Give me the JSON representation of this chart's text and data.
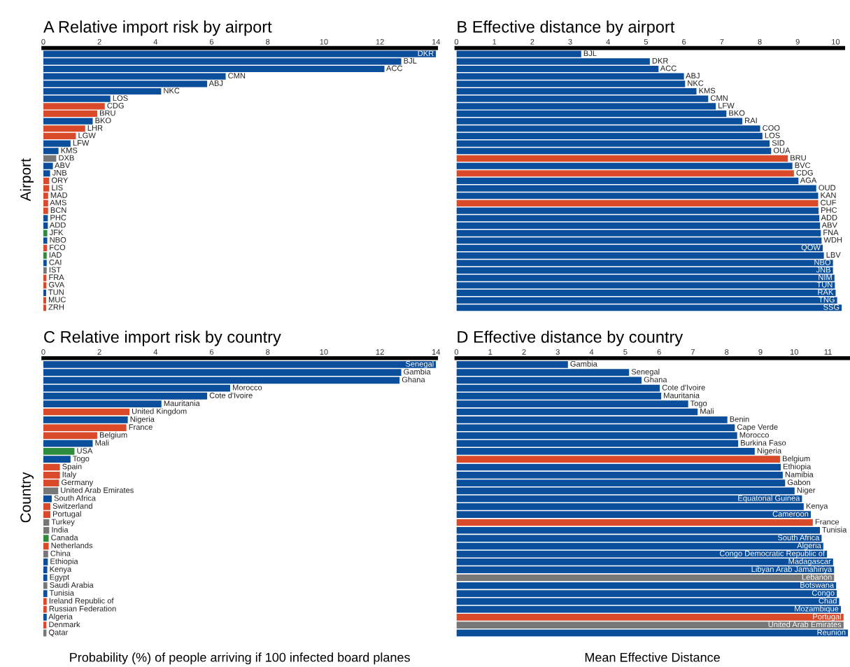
{
  "chart_data": [
    {
      "type": "bar",
      "orientation": "horizontal",
      "title": "A Relative import risk by airport",
      "ylabel": "Airport",
      "tick_labels": "x",
      "categories": [
        "DKR",
        "BJL",
        "ACC",
        "CMN",
        "ABJ",
        "NKC",
        "LOS",
        "CDG",
        "BRU",
        "BKO",
        "LHR",
        "LGW",
        "LFW",
        "KMS",
        "DXB",
        "ABV",
        "JNB",
        "ORY",
        "LIS",
        "MAD",
        "AMS",
        "BCN",
        "PHC",
        "ADD",
        "JFK",
        "NBO",
        "FCO",
        "IAD",
        "CAI",
        "IST",
        "FRA",
        "GVA",
        "TUN",
        "MUC",
        "ZRH"
      ],
      "values": [
        14.0,
        12.76,
        12.16,
        6.5,
        5.84,
        4.2,
        2.39,
        2.19,
        1.92,
        1.76,
        1.49,
        1.16,
        0.97,
        0.54,
        0.46,
        0.34,
        0.24,
        0.21,
        0.21,
        0.17,
        0.17,
        0.17,
        0.16,
        0.16,
        0.14,
        0.14,
        0.13,
        0.12,
        0.12,
        0.12,
        0.11,
        0.11,
        0.1,
        0.1,
        0.1
      ],
      "colors": [
        "#0b4f9c",
        "#0b4f9c",
        "#0b4f9c",
        "#0b4f9c",
        "#0b4f9c",
        "#0b4f9c",
        "#0b4f9c",
        "#d94a2a",
        "#d94a2a",
        "#0b4f9c",
        "#d94a2a",
        "#d94a2a",
        "#0b4f9c",
        "#0b4f9c",
        "#777777",
        "#0b4f9c",
        "#0b4f9c",
        "#d94a2a",
        "#d94a2a",
        "#d94a2a",
        "#d94a2a",
        "#d94a2a",
        "#0b4f9c",
        "#0b4f9c",
        "#2e8b3e",
        "#0b4f9c",
        "#d94a2a",
        "#2e8b3e",
        "#0b4f9c",
        "#777777",
        "#d94a2a",
        "#d94a2a",
        "#0b4f9c",
        "#d94a2a",
        "#d94a2a"
      ],
      "xlim": [
        0,
        14
      ],
      "xticks": [
        0,
        2,
        4,
        6,
        8,
        10,
        12,
        14
      ],
      "grid": false,
      "legend": false
    },
    {
      "type": "bar",
      "orientation": "horizontal",
      "title": "B Effective distance by airport",
      "tick_labels": "x",
      "categories": [
        "BJL",
        "DKR",
        "ACC",
        "ABJ",
        "NKC",
        "KMS",
        "CMN",
        "LFW",
        "BKO",
        "RAI",
        "COO",
        "LOS",
        "SID",
        "OUA",
        "BRU",
        "BVC",
        "CDG",
        "AGA",
        "OUD",
        "KAN",
        "CUF",
        "PHC",
        "ADD",
        "ABV",
        "FNA",
        "WDH",
        "QOW",
        "LBV",
        "NBO",
        "JNB",
        "NIM",
        "TUN",
        "RAK",
        "TNG",
        "SSG"
      ],
      "values": [
        3.29,
        5.1,
        5.33,
        6.0,
        6.03,
        6.33,
        6.64,
        6.84,
        7.12,
        7.54,
        8.01,
        8.07,
        8.26,
        8.3,
        8.74,
        8.86,
        8.9,
        9.02,
        9.49,
        9.54,
        9.54,
        9.55,
        9.57,
        9.59,
        9.61,
        9.63,
        9.66,
        9.69,
        9.93,
        9.93,
        9.97,
        9.98,
        10.0,
        10.04,
        10.16
      ],
      "colors": [
        "#0b4f9c",
        "#0b4f9c",
        "#0b4f9c",
        "#0b4f9c",
        "#0b4f9c",
        "#0b4f9c",
        "#0b4f9c",
        "#0b4f9c",
        "#0b4f9c",
        "#0b4f9c",
        "#0b4f9c",
        "#0b4f9c",
        "#0b4f9c",
        "#0b4f9c",
        "#d94a2a",
        "#0b4f9c",
        "#d94a2a",
        "#0b4f9c",
        "#0b4f9c",
        "#0b4f9c",
        "#d94a2a",
        "#0b4f9c",
        "#0b4f9c",
        "#0b4f9c",
        "#0b4f9c",
        "#0b4f9c",
        "#0b4f9c",
        "#0b4f9c",
        "#0b4f9c",
        "#0b4f9c",
        "#0b4f9c",
        "#0b4f9c",
        "#0b4f9c",
        "#0b4f9c",
        "#0b4f9c"
      ],
      "xlim": [
        0,
        10.2
      ],
      "xticks": [
        0,
        1,
        2,
        3,
        4,
        5,
        6,
        7,
        8,
        9,
        10
      ],
      "grid": false,
      "legend": false
    },
    {
      "type": "bar",
      "orientation": "horizontal",
      "title": "C Relative import risk by country",
      "ylabel": "Country",
      "xlabel": "Probability (%) of people arriving if 100 infected board planes",
      "tick_labels": "x",
      "categories": [
        "Senegal",
        "Gambia",
        "Ghana",
        "Morocco",
        "Cote d'Ivoire",
        "Mauritania",
        "United Kingdom",
        "Nigeria",
        "France",
        "Belgium",
        "Mali",
        "USA",
        "Togo",
        "Spain",
        "Italy",
        "Germany",
        "United Arab Emirates",
        "South Africa",
        "Switzerland",
        "Portugal",
        "Turkey",
        "India",
        "Canada",
        "Netherlands",
        "China",
        "Ethiopia",
        "Kenya",
        "Egypt",
        "Saudi Arabia",
        "Tunisia",
        "Ireland Republic of",
        "Russian Federation",
        "Algeria",
        "Denmark",
        "Qatar"
      ],
      "values": [
        14.0,
        12.76,
        12.7,
        6.66,
        5.84,
        4.21,
        3.07,
        3.01,
        2.96,
        1.92,
        1.76,
        1.11,
        0.97,
        0.59,
        0.59,
        0.56,
        0.53,
        0.3,
        0.25,
        0.25,
        0.21,
        0.21,
        0.19,
        0.19,
        0.17,
        0.16,
        0.14,
        0.14,
        0.14,
        0.14,
        0.12,
        0.12,
        0.12,
        0.11,
        0.11
      ],
      "colors": [
        "#0b4f9c",
        "#0b4f9c",
        "#0b4f9c",
        "#0b4f9c",
        "#0b4f9c",
        "#0b4f9c",
        "#d94a2a",
        "#0b4f9c",
        "#d94a2a",
        "#d94a2a",
        "#0b4f9c",
        "#2e8b3e",
        "#0b4f9c",
        "#d94a2a",
        "#d94a2a",
        "#d94a2a",
        "#777777",
        "#0b4f9c",
        "#d94a2a",
        "#d94a2a",
        "#777777",
        "#777777",
        "#2e8b3e",
        "#d94a2a",
        "#777777",
        "#0b4f9c",
        "#0b4f9c",
        "#0b4f9c",
        "#777777",
        "#0b4f9c",
        "#d94a2a",
        "#d94a2a",
        "#0b4f9c",
        "#d94a2a",
        "#777777"
      ],
      "xlim": [
        0,
        14
      ],
      "xticks": [
        0,
        2,
        4,
        6,
        8,
        10,
        12,
        14
      ],
      "grid": false,
      "legend": false
    },
    {
      "type": "bar",
      "orientation": "horizontal",
      "title": "D Effective distance by country",
      "xlabel": "Mean Effective Distance",
      "tick_labels": "x",
      "categories": [
        "Gambia",
        "Senegal",
        "Ghana",
        "Cote d'Ivoire",
        "Mauritania",
        "Togo",
        "Mali",
        "Benin",
        "Cape Verde",
        "Morocco",
        "Burkina Faso",
        "Nigeria",
        "Belgium",
        "Ethiopia",
        "Namibia",
        "Gabon",
        "Niger",
        "Equatorial Guinea",
        "Kenya",
        "Cameroon",
        "France",
        "Tunisia",
        "South Africa",
        "Algeria",
        "Congo Democratic Republic of",
        "Madagascar",
        "Libyan Arab Jamahiriya",
        "Lebanon",
        "Botswana",
        "Congo",
        "Chad",
        "Mozambique",
        "Portugal",
        "United Arab Emirates",
        "Reunion"
      ],
      "values": [
        3.3,
        5.11,
        5.48,
        6.02,
        6.06,
        6.86,
        7.14,
        8.02,
        8.24,
        8.31,
        8.34,
        8.83,
        9.58,
        9.6,
        9.66,
        9.73,
        10.01,
        10.23,
        10.28,
        10.49,
        10.55,
        10.76,
        10.81,
        10.86,
        10.97,
        11.15,
        11.18,
        11.18,
        11.24,
        11.26,
        11.33,
        11.38,
        11.46,
        11.46,
        11.59
      ],
      "colors": [
        "#0b4f9c",
        "#0b4f9c",
        "#0b4f9c",
        "#0b4f9c",
        "#0b4f9c",
        "#0b4f9c",
        "#0b4f9c",
        "#0b4f9c",
        "#0b4f9c",
        "#0b4f9c",
        "#0b4f9c",
        "#0b4f9c",
        "#d94a2a",
        "#0b4f9c",
        "#0b4f9c",
        "#0b4f9c",
        "#0b4f9c",
        "#0b4f9c",
        "#0b4f9c",
        "#0b4f9c",
        "#d94a2a",
        "#0b4f9c",
        "#0b4f9c",
        "#0b4f9c",
        "#0b4f9c",
        "#0b4f9c",
        "#0b4f9c",
        "#777777",
        "#0b4f9c",
        "#0b4f9c",
        "#0b4f9c",
        "#0b4f9c",
        "#d94a2a",
        "#777777",
        "#0b4f9c"
      ],
      "xlim": [
        0,
        11.6
      ],
      "xticks": [
        0,
        1,
        2,
        3,
        4,
        5,
        6,
        7,
        8,
        9,
        10,
        11
      ],
      "grid": false,
      "legend": false
    }
  ]
}
